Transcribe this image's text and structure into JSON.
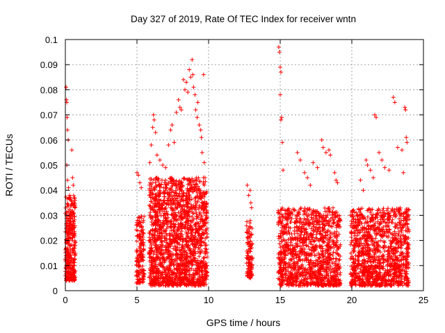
{
  "chart_data": {
    "type": "scatter",
    "title": "Day 327 of 2019, Rate Of TEC Index for receiver wntn",
    "xlabel": "GPS time / hours",
    "ylabel": "ROTI / TECUs",
    "xlim": [
      0,
      25
    ],
    "ylim": [
      0,
      0.1
    ],
    "xticks": [
      0,
      5,
      10,
      15,
      20,
      25
    ],
    "xtick_labels": [
      "0",
      "5",
      "10",
      "15",
      "20",
      "25"
    ],
    "yticks": [
      0,
      0.01,
      0.02,
      0.03,
      0.04,
      0.05,
      0.06,
      0.07,
      0.08,
      0.09,
      0.1
    ],
    "ytick_labels": [
      "0",
      "0.01",
      "0.02",
      "0.03",
      "0.04",
      "0.05",
      "0.06",
      "0.07",
      "0.08",
      "0.09",
      "0.1"
    ],
    "grid": true,
    "marker": "+",
    "series_color": "#ff0000",
    "series": [
      {
        "name": "ROTI",
        "points": [
          [
            0.05,
            0.081
          ],
          [
            0.08,
            0.076
          ],
          [
            0.1,
            0.075
          ],
          [
            0.12,
            0.069
          ],
          [
            0.15,
            0.064
          ],
          [
            0.2,
            0.06
          ],
          [
            0.1,
            0.05
          ],
          [
            0.15,
            0.044
          ],
          [
            0.22,
            0.041
          ],
          [
            0.3,
            0.038
          ],
          [
            0.45,
            0.056
          ],
          [
            0.5,
            0.045
          ],
          [
            0.55,
            0.042
          ],
          [
            0.4,
            0.036
          ],
          [
            0.6,
            0.035
          ],
          [
            0.65,
            0.033
          ],
          [
            5.0,
            0.047
          ],
          [
            5.1,
            0.046
          ],
          [
            5.2,
            0.043
          ],
          [
            5.3,
            0.041
          ],
          [
            5.45,
            0.028
          ],
          [
            5.2,
            0.027
          ],
          [
            5.9,
            0.051
          ],
          [
            6.0,
            0.058
          ],
          [
            6.1,
            0.065
          ],
          [
            6.15,
            0.07
          ],
          [
            6.2,
            0.068
          ],
          [
            6.3,
            0.063
          ],
          [
            6.4,
            0.054
          ],
          [
            6.6,
            0.052
          ],
          [
            6.8,
            0.05
          ],
          [
            7.0,
            0.049
          ],
          [
            7.2,
            0.058
          ],
          [
            7.35,
            0.064
          ],
          [
            7.45,
            0.066
          ],
          [
            7.6,
            0.059
          ],
          [
            7.75,
            0.071
          ],
          [
            7.9,
            0.076
          ],
          [
            8.0,
            0.073
          ],
          [
            8.1,
            0.072
          ],
          [
            8.25,
            0.084
          ],
          [
            8.35,
            0.08
          ],
          [
            8.45,
            0.083
          ],
          [
            8.55,
            0.079
          ],
          [
            8.65,
            0.088
          ],
          [
            8.75,
            0.085
          ],
          [
            8.85,
            0.092
          ],
          [
            8.9,
            0.086
          ],
          [
            8.95,
            0.081
          ],
          [
            9.05,
            0.078
          ],
          [
            9.1,
            0.072
          ],
          [
            9.2,
            0.069
          ],
          [
            9.25,
            0.075
          ],
          [
            9.35,
            0.066
          ],
          [
            9.45,
            0.064
          ],
          [
            9.5,
            0.061
          ],
          [
            9.55,
            0.055
          ],
          [
            9.65,
            0.086
          ],
          [
            9.7,
            0.051
          ],
          [
            9.75,
            0.045
          ],
          [
            9.85,
            0.032
          ],
          [
            12.7,
            0.042
          ],
          [
            12.8,
            0.038
          ],
          [
            12.9,
            0.04
          ],
          [
            12.95,
            0.035
          ],
          [
            13.0,
            0.033
          ],
          [
            14.9,
            0.097
          ],
          [
            14.95,
            0.095
          ],
          [
            15.0,
            0.089
          ],
          [
            15.05,
            0.087
          ],
          [
            15.0,
            0.078
          ],
          [
            15.1,
            0.069
          ],
          [
            15.05,
            0.068
          ],
          [
            15.15,
            0.059
          ],
          [
            15.2,
            0.048
          ],
          [
            16.2,
            0.055
          ],
          [
            16.4,
            0.052
          ],
          [
            16.7,
            0.047
          ],
          [
            16.9,
            0.045
          ],
          [
            17.1,
            0.042
          ],
          [
            17.3,
            0.051
          ],
          [
            17.6,
            0.049
          ],
          [
            17.9,
            0.06
          ],
          [
            18.0,
            0.057
          ],
          [
            18.2,
            0.055
          ],
          [
            18.4,
            0.056
          ],
          [
            18.5,
            0.054
          ],
          [
            18.8,
            0.047
          ],
          [
            18.9,
            0.044
          ],
          [
            19.0,
            0.043
          ],
          [
            20.6,
            0.044
          ],
          [
            20.8,
            0.04
          ],
          [
            21.0,
            0.052
          ],
          [
            21.1,
            0.05
          ],
          [
            21.3,
            0.048
          ],
          [
            21.5,
            0.045
          ],
          [
            21.6,
            0.07
          ],
          [
            21.7,
            0.069
          ],
          [
            21.9,
            0.055
          ],
          [
            22.1,
            0.052
          ],
          [
            22.3,
            0.049
          ],
          [
            22.6,
            0.048
          ],
          [
            22.9,
            0.077
          ],
          [
            23.0,
            0.075
          ],
          [
            23.2,
            0.057
          ],
          [
            23.5,
            0.056
          ],
          [
            23.6,
            0.047
          ],
          [
            23.7,
            0.073
          ],
          [
            23.75,
            0.072
          ],
          [
            23.8,
            0.061
          ],
          [
            23.85,
            0.059
          ]
        ],
        "dense_clusters": [
          {
            "x_range": [
              0.0,
              0.7
            ],
            "y_range": [
              0.004,
              0.038
            ],
            "count": 340
          },
          {
            "x_range": [
              4.95,
              5.5
            ],
            "y_range": [
              0.003,
              0.03
            ],
            "count": 150
          },
          {
            "x_range": [
              5.85,
              9.9
            ],
            "y_range": [
              0.002,
              0.045
            ],
            "count": 1700
          },
          {
            "x_range": [
              12.65,
              13.05
            ],
            "y_range": [
              0.005,
              0.028
            ],
            "count": 110
          },
          {
            "x_range": [
              14.85,
              19.2
            ],
            "y_range": [
              0.002,
              0.033
            ],
            "count": 1200
          },
          {
            "x_range": [
              19.9,
              24.0
            ],
            "y_range": [
              0.002,
              0.033
            ],
            "count": 1200
          }
        ]
      }
    ]
  }
}
